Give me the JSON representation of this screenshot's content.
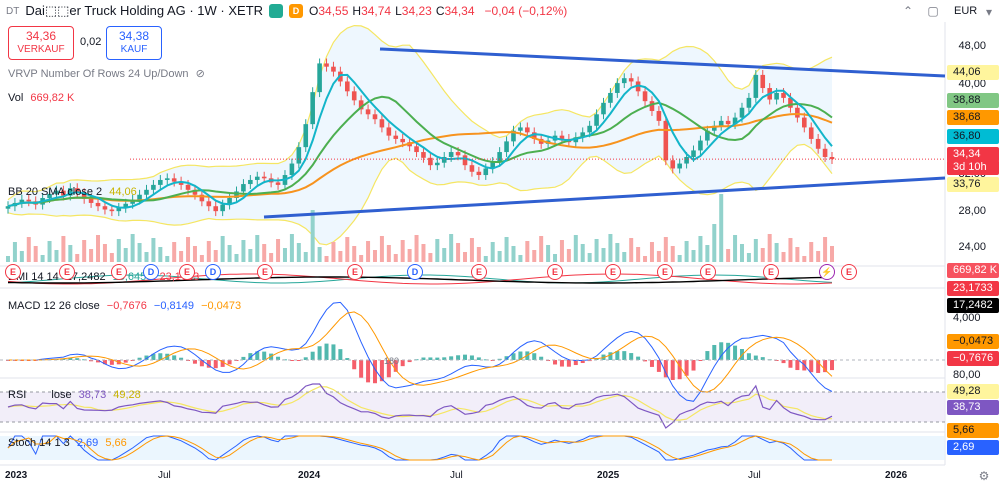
{
  "header": {
    "symbol_code": "DT",
    "title": "Dai⬚⬚er Truck Holding AG · 1W · XETR",
    "badge_d": "D",
    "ohlc": [
      {
        "k": "O",
        "v": "34,55"
      },
      {
        "k": "H",
        "v": "34,74"
      },
      {
        "k": "L",
        "v": "34,23"
      },
      {
        "k": "C",
        "v": "34,34"
      }
    ],
    "change": "−0,04 (−0,12%)",
    "currency": "EUR"
  },
  "trade": {
    "sell_price": "34,36",
    "sell_label": "VERKAUF",
    "spread": "0,02",
    "buy_price": "34,38",
    "buy_label": "KAUF"
  },
  "indicators": {
    "vrvp": "VRVP Number Of Rows 24 Up/Down",
    "vol_label": "Vol",
    "vol_value": "669,82 K",
    "bb_label": "BB 20 SMA close 2",
    "bb_value": "44,06",
    "dmi_label": "DMI 14 14",
    "dmi_values": [
      "17,2482",
      "15,6450",
      "23,1733"
    ],
    "macd_label": "MACD 12 26 close",
    "macd_values": [
      "−0,7676",
      "−0,8149",
      "−0,0473"
    ],
    "rsi_label": "RSI",
    "rsi_sub": "lose",
    "rsi_values": [
      "38,73",
      "49,28"
    ],
    "stoch_label": "Stoch 14 1 3",
    "stoch_values": [
      "2,69",
      "5,66"
    ]
  },
  "price_axis": {
    "ticks": [
      "48,00",
      "40,00",
      "32,00",
      "28,00",
      "24,00"
    ],
    "tags": [
      {
        "label": "44,06",
        "bg": "#fff59d",
        "fg": "#131722"
      },
      {
        "label": "38,88",
        "bg": "#81c784",
        "fg": "#131722"
      },
      {
        "label": "38,68",
        "bg": "#ff9800",
        "fg": "#131722"
      },
      {
        "label": "36,80",
        "bg": "#00bcd4",
        "fg": "#131722"
      },
      {
        "label": "34,34",
        "bg": "#f23645",
        "fg": "#ffffff"
      },
      {
        "label": "3d 10h",
        "bg": "#f23645",
        "fg": "#ffffff"
      },
      {
        "label": "33,76",
        "bg": "#fff59d",
        "fg": "#131722"
      },
      {
        "label": "669,82 K",
        "bg": "#f7525f",
        "fg": "#ffffff"
      },
      {
        "label": "23,1733",
        "bg": "#f23645",
        "fg": "#ffffff"
      },
      {
        "label": "17,2482",
        "bg": "#000000",
        "fg": "#ffffff"
      },
      {
        "label": "4,000",
        "bg": "",
        "fg": "#131722"
      },
      {
        "label": "−0,0473",
        "bg": "#ff9800",
        "fg": "#131722"
      },
      {
        "label": "−0,7676",
        "bg": "#f23645",
        "fg": "#ffffff"
      },
      {
        "label": "80,00",
        "bg": "",
        "fg": "#131722"
      },
      {
        "label": "49,28",
        "bg": "#fff59d",
        "fg": "#131722"
      },
      {
        "label": "38,73",
        "bg": "#7e57c2",
        "fg": "#ffffff"
      },
      {
        "label": "5,66",
        "bg": "#ff9800",
        "fg": "#131722"
      },
      {
        "label": "2,69",
        "bg": "#2962ff",
        "fg": "#ffffff"
      }
    ]
  },
  "time_axis": [
    "2023",
    "Jul",
    "2024",
    "Jul",
    "2025",
    "Jul",
    "2026"
  ],
  "macd_annotation": "180",
  "colors": {
    "up": "#26a69a",
    "down": "#ef5350",
    "trendline": "#2f5fd0",
    "bb_band": "#f5e663",
    "bb_fill": "#e3f2fd",
    "ma_fast": "#13b5c9",
    "ma_mid": "#4caf50",
    "ma_slow": "#f7931e"
  },
  "chart_data": {
    "type": "candlestick",
    "interval": "1W",
    "price_axis_ticks": [
      48,
      40,
      32,
      28,
      24
    ],
    "last_close": 34.34,
    "closes": [
      28.6,
      29.0,
      29.4,
      29.2,
      28.8,
      29.6,
      30.1,
      30.5,
      29.9,
      30.8,
      30.2,
      29.5,
      29.0,
      28.6,
      28.2,
      28.0,
      28.4,
      28.9,
      29.4,
      30.0,
      30.6,
      31.2,
      31.8,
      32.0,
      31.6,
      31.2,
      30.6,
      30.0,
      29.2,
      28.6,
      28.0,
      28.8,
      29.6,
      30.4,
      31.3,
      31.8,
      32.2,
      32.0,
      31.5,
      31.2,
      32.4,
      33.8,
      35.8,
      38.6,
      42.5,
      46.0,
      45.6,
      45.0,
      43.8,
      42.6,
      41.5,
      40.4,
      39.8,
      39.2,
      38.2,
      37.2,
      36.8,
      36.4,
      35.9,
      35.2,
      34.5,
      33.6,
      33.9,
      34.6,
      35.2,
      34.8,
      33.6,
      32.8,
      32.4,
      33.2,
      34.0,
      35.2,
      36.5,
      37.8,
      38.2,
      37.6,
      36.8,
      36.2,
      36.6,
      37.2,
      36.8,
      36.4,
      37.0,
      37.6,
      38.4,
      39.8,
      41.2,
      42.4,
      43.6,
      44.2,
      43.8,
      42.6,
      41.4,
      40.2,
      39.0,
      34.2,
      33.2,
      33.8,
      34.6,
      35.4,
      36.6,
      37.8,
      38.4,
      39.0,
      38.6,
      39.4,
      40.6,
      41.8,
      44.6,
      43.0,
      41.6,
      42.4,
      41.8,
      40.6,
      39.4,
      38.2,
      36.8,
      35.6,
      34.6,
      34.34
    ]
  }
}
